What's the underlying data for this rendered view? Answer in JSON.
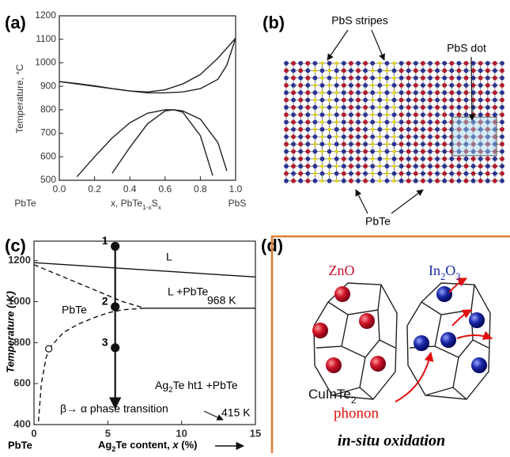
{
  "chart_data": [
    {
      "type": "line",
      "panel_label": "(a)",
      "ylabel": "Temperature, °C",
      "xlabel": [
        "x, PbTe",
        "1-x",
        "S",
        "x"
      ],
      "x_end_labels": [
        "PbTe",
        "PbS"
      ],
      "xlim": [
        0,
        1
      ],
      "ylim": [
        500,
        1200
      ],
      "xticks": [
        {
          "value": 0,
          "label": "0.0"
        },
        0.2,
        0.4,
        0.6,
        0.8,
        {
          "value": 1,
          "label": "1.0"
        }
      ],
      "yticks": [
        500,
        600,
        700,
        800,
        900,
        1000,
        1100,
        1200
      ],
      "series": [
        {
          "color": "#222222",
          "x": [
            0,
            0.1,
            0.2,
            0.3,
            0.4,
            0.5,
            0.6,
            0.7,
            0.8,
            0.9,
            1.0
          ],
          "values": [
            920,
            912,
            902,
            890,
            880,
            876,
            885,
            910,
            950,
            1020,
            1105
          ]
        },
        {
          "color": "#222222",
          "x": [
            0,
            0.2,
            0.4,
            0.5,
            0.6,
            0.7,
            0.8,
            0.9,
            0.95,
            1.0
          ],
          "values": [
            920,
            900,
            880,
            872,
            872,
            876,
            890,
            930,
            990,
            1105
          ]
        },
        {
          "color": "#222222",
          "x": [
            0.1,
            0.2,
            0.3,
            0.4,
            0.5,
            0.6,
            0.65,
            0.7,
            0.8,
            0.9,
            0.95
          ],
          "values": [
            515,
            600,
            680,
            745,
            785,
            800,
            800,
            795,
            760,
            660,
            540
          ]
        },
        {
          "color": "#222222",
          "x": [
            0.3,
            0.4,
            0.5,
            0.6,
            0.65,
            0.7,
            0.8,
            0.87
          ],
          "values": [
            530,
            640,
            740,
            795,
            800,
            790,
            690,
            520
          ]
        }
      ]
    },
    {
      "type": "line",
      "panel_label": "(c)",
      "ylabel": "Temperature ( K)",
      "xlabel": [
        "Ag",
        "2",
        "Te content, ",
        "x",
        " (%)"
      ],
      "x_origin_label": "PbTe",
      "xlim": [
        0,
        15
      ],
      "ylim": [
        400,
        1295
      ],
      "xticks": [
        0,
        5,
        10,
        15
      ],
      "yticks": [
        400,
        600,
        800,
        1000,
        1200
      ],
      "annotations": [
        "L",
        "L +PbTe",
        "968 K",
        "PbTe",
        [
          "Ag",
          "2",
          "Te ht1 +PbTe"
        ],
        "β→ α phase transition",
        "415 K"
      ],
      "series": [
        {
          "color": "#111111",
          "x": [
            0,
            15
          ],
          "values": [
            1190,
            1120
          ]
        },
        {
          "color": "#111111",
          "x": [
            7.5,
            15
          ],
          "values": [
            968,
            968
          ]
        },
        {
          "color": "#111111",
          "dash": true,
          "x": [
            0,
            2,
            4,
            6,
            7.5
          ],
          "values": [
            1180,
            1120,
            1060,
            1000,
            968
          ]
        },
        {
          "color": "#111111",
          "dash": true,
          "x": [
            1,
            2,
            3,
            4,
            5,
            6,
            7.5
          ],
          "values": [
            770,
            850,
            890,
            920,
            945,
            960,
            968
          ]
        },
        {
          "color": "#111111",
          "dash": true,
          "x": [
            0.3,
            0.5,
            0.8,
            1
          ],
          "values": [
            415,
            600,
            720,
            770
          ]
        },
        {
          "color": "#111111",
          "arrow": true,
          "x": [
            5.5,
            5.5
          ],
          "values": [
            1270,
            480
          ]
        },
        {
          "color": "#111111",
          "marker": "dot",
          "x": [
            5.5,
            5.5,
            5.5
          ],
          "values": [
            1270,
            975,
            775
          ],
          "point_labels": [
            "1",
            "2",
            "3"
          ]
        },
        {
          "color": "#111111",
          "marker": "open",
          "x": [
            1
          ],
          "values": [
            770
          ]
        }
      ]
    }
  ],
  "panel_b": {
    "panel_label": "(b)",
    "labels": [
      "PbS stripes",
      "PbS dot",
      "PbTe"
    ]
  },
  "panel_d": {
    "panel_label": "(d)",
    "zno": "ZnO",
    "in2o3": [
      "In",
      "2",
      "O",
      "3"
    ],
    "host": [
      "CuInTe",
      "2"
    ],
    "phonon": "phonon",
    "caption": "in-situ oxidation"
  }
}
